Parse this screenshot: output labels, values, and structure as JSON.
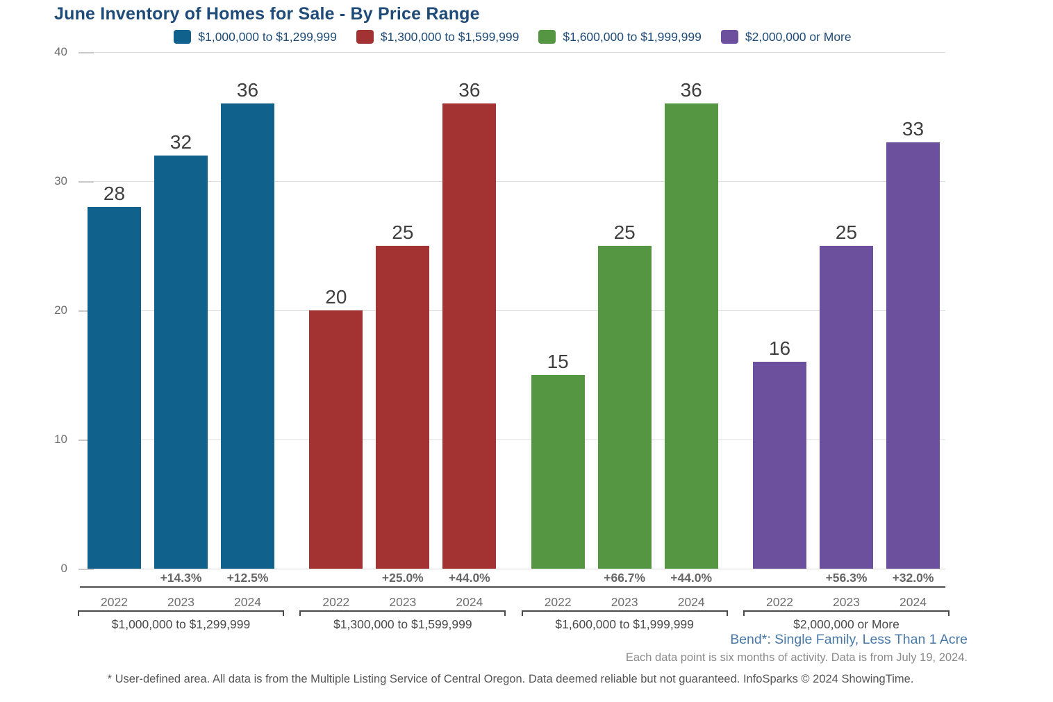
{
  "chart_data": {
    "type": "bar",
    "title": "June Inventory of Homes for Sale - By Price Range",
    "ylim": [
      0,
      40
    ],
    "yticks": [
      0,
      10,
      20,
      30,
      40
    ],
    "grid": true,
    "legend_position": "top",
    "years": [
      "2022",
      "2023",
      "2024"
    ],
    "legend": [
      {
        "label": "$1,000,000 to $1,299,999",
        "color": "#11618D"
      },
      {
        "label": "$1,300,000 to $1,599,999",
        "color": "#A33233"
      },
      {
        "label": "$1,600,000 to $1,999,999",
        "color": "#559643"
      },
      {
        "label": "$2,000,000 or More",
        "color": "#6C4F9D"
      }
    ],
    "groups": [
      {
        "label": "$1,000,000 to $1,299,999",
        "color": "#11618D",
        "values": [
          28,
          32,
          36
        ],
        "pct_changes": [
          "",
          "+14.3%",
          "+12.5%"
        ]
      },
      {
        "label": "$1,300,000 to $1,599,999",
        "color": "#A33233",
        "values": [
          20,
          25,
          36
        ],
        "pct_changes": [
          "",
          "+25.0%",
          "+44.0%"
        ]
      },
      {
        "label": "$1,600,000 to $1,999,999",
        "color": "#559643",
        "values": [
          15,
          25,
          36
        ],
        "pct_changes": [
          "",
          "+66.7%",
          "+44.0%"
        ]
      },
      {
        "label": "$2,000,000 or More",
        "color": "#6C4F9D",
        "values": [
          16,
          25,
          33
        ],
        "pct_changes": [
          "",
          "+56.3%",
          "+32.0%"
        ]
      }
    ]
  },
  "notes": {
    "area_note": "Bend*: Single Family, Less Than 1 Acre",
    "data_note": "Each data point is six months of activity. Data is from July 19, 2024.",
    "disclaimer": "* User-defined area. All data is from the Multiple Listing Service of Central Oregon. Data deemed reliable but not guaranteed. InfoSparks © 2024 ShowingTime."
  }
}
